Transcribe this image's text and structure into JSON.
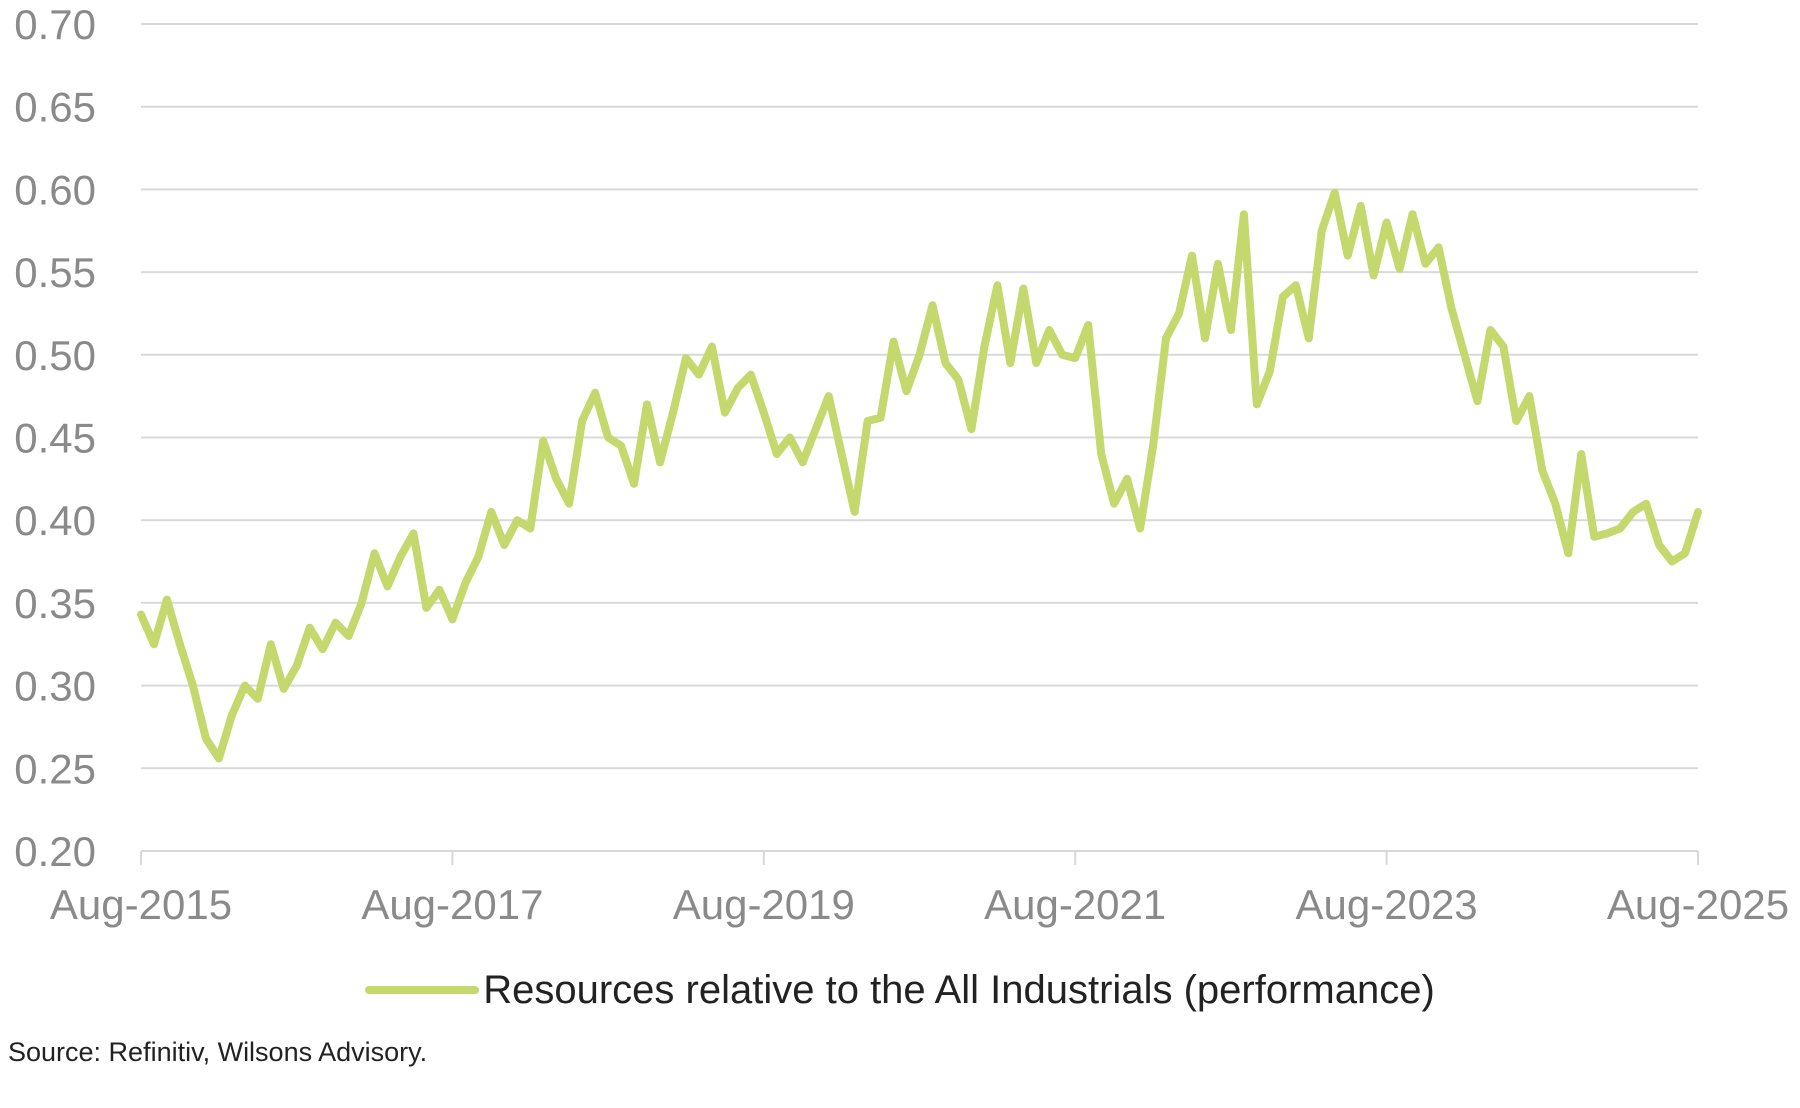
{
  "chart_data": {
    "type": "line",
    "title": "",
    "xlabel": "",
    "ylabel": "",
    "ylim": [
      0.2,
      0.7
    ],
    "yticks": [
      "0.20",
      "0.25",
      "0.30",
      "0.35",
      "0.40",
      "0.45",
      "0.50",
      "0.55",
      "0.60",
      "0.65",
      "0.70"
    ],
    "xlim": [
      "2015-08",
      "2025-08"
    ],
    "xticks": [
      {
        "date": "2015-08",
        "label": "Aug-2015"
      },
      {
        "date": "2017-08",
        "label": "Aug-2017"
      },
      {
        "date": "2019-08",
        "label": "Aug-2019"
      },
      {
        "date": "2021-08",
        "label": "Aug-2021"
      },
      {
        "date": "2023-08",
        "label": "Aug-2023"
      },
      {
        "date": "2025-08",
        "label": "Aug-2025"
      }
    ],
    "grid": "horizontal",
    "legend_position": "bottom",
    "series": [
      {
        "name": "Resources relative to the All Industrials (performance)",
        "color": "#c5d86d",
        "points": [
          [
            "2015-08",
            0.343
          ],
          [
            "2015-09",
            0.325
          ],
          [
            "2015-10",
            0.352
          ],
          [
            "2015-11",
            0.325
          ],
          [
            "2015-12",
            0.3
          ],
          [
            "2016-01",
            0.268
          ],
          [
            "2016-02",
            0.256
          ],
          [
            "2016-03",
            0.282
          ],
          [
            "2016-04",
            0.3
          ],
          [
            "2016-05",
            0.292
          ],
          [
            "2016-06",
            0.325
          ],
          [
            "2016-07",
            0.298
          ],
          [
            "2016-08",
            0.312
          ],
          [
            "2016-09",
            0.335
          ],
          [
            "2016-10",
            0.322
          ],
          [
            "2016-11",
            0.338
          ],
          [
            "2016-12",
            0.33
          ],
          [
            "2017-01",
            0.35
          ],
          [
            "2017-02",
            0.38
          ],
          [
            "2017-03",
            0.36
          ],
          [
            "2017-04",
            0.378
          ],
          [
            "2017-05",
            0.392
          ],
          [
            "2017-06",
            0.347
          ],
          [
            "2017-07",
            0.358
          ],
          [
            "2017-08",
            0.34
          ],
          [
            "2017-09",
            0.362
          ],
          [
            "2017-10",
            0.378
          ],
          [
            "2017-11",
            0.405
          ],
          [
            "2017-12",
            0.385
          ],
          [
            "2018-01",
            0.4
          ],
          [
            "2018-02",
            0.395
          ],
          [
            "2018-03",
            0.448
          ],
          [
            "2018-04",
            0.425
          ],
          [
            "2018-05",
            0.41
          ],
          [
            "2018-06",
            0.46
          ],
          [
            "2018-07",
            0.477
          ],
          [
            "2018-08",
            0.45
          ],
          [
            "2018-09",
            0.445
          ],
          [
            "2018-10",
            0.422
          ],
          [
            "2018-11",
            0.47
          ],
          [
            "2018-12",
            0.435
          ],
          [
            "2019-01",
            0.465
          ],
          [
            "2019-02",
            0.498
          ],
          [
            "2019-03",
            0.488
          ],
          [
            "2019-04",
            0.505
          ],
          [
            "2019-05",
            0.465
          ],
          [
            "2019-06",
            0.48
          ],
          [
            "2019-07",
            0.488
          ],
          [
            "2019-08",
            0.465
          ],
          [
            "2019-09",
            0.44
          ],
          [
            "2019-10",
            0.45
          ],
          [
            "2019-11",
            0.435
          ],
          [
            "2019-12",
            0.455
          ],
          [
            "2020-01",
            0.475
          ],
          [
            "2020-02",
            0.44
          ],
          [
            "2020-03",
            0.405
          ],
          [
            "2020-04",
            0.46
          ],
          [
            "2020-05",
            0.462
          ],
          [
            "2020-06",
            0.508
          ],
          [
            "2020-07",
            0.478
          ],
          [
            "2020-08",
            0.5
          ],
          [
            "2020-09",
            0.53
          ],
          [
            "2020-10",
            0.495
          ],
          [
            "2020-11",
            0.485
          ],
          [
            "2020-12",
            0.455
          ],
          [
            "2021-01",
            0.505
          ],
          [
            "2021-02",
            0.542
          ],
          [
            "2021-03",
            0.495
          ],
          [
            "2021-04",
            0.54
          ],
          [
            "2021-05",
            0.495
          ],
          [
            "2021-06",
            0.515
          ],
          [
            "2021-07",
            0.5
          ],
          [
            "2021-08",
            0.498
          ],
          [
            "2021-09",
            0.518
          ],
          [
            "2021-10",
            0.44
          ],
          [
            "2021-11",
            0.41
          ],
          [
            "2021-12",
            0.425
          ],
          [
            "2022-01",
            0.395
          ],
          [
            "2022-02",
            0.445
          ],
          [
            "2022-03",
            0.51
          ],
          [
            "2022-04",
            0.525
          ],
          [
            "2022-05",
            0.56
          ],
          [
            "2022-06",
            0.51
          ],
          [
            "2022-07",
            0.555
          ],
          [
            "2022-08",
            0.515
          ],
          [
            "2022-09",
            0.585
          ],
          [
            "2022-10",
            0.47
          ],
          [
            "2022-11",
            0.49
          ],
          [
            "2022-12",
            0.535
          ],
          [
            "2023-01",
            0.542
          ],
          [
            "2023-02",
            0.51
          ],
          [
            "2023-03",
            0.575
          ],
          [
            "2023-04",
            0.598
          ],
          [
            "2023-05",
            0.56
          ],
          [
            "2023-06",
            0.59
          ],
          [
            "2023-07",
            0.548
          ],
          [
            "2023-08",
            0.58
          ],
          [
            "2023-09",
            0.552
          ],
          [
            "2023-10",
            0.585
          ],
          [
            "2023-11",
            0.555
          ],
          [
            "2023-12",
            0.565
          ],
          [
            "2024-01",
            0.528
          ],
          [
            "2024-02",
            0.5
          ],
          [
            "2024-03",
            0.472
          ],
          [
            "2024-04",
            0.515
          ],
          [
            "2024-05",
            0.505
          ],
          [
            "2024-06",
            0.46
          ],
          [
            "2024-07",
            0.475
          ],
          [
            "2024-08",
            0.43
          ],
          [
            "2024-09",
            0.41
          ],
          [
            "2024-10",
            0.38
          ],
          [
            "2024-11",
            0.44
          ],
          [
            "2024-12",
            0.39
          ],
          [
            "2025-01",
            0.392
          ],
          [
            "2025-02",
            0.395
          ],
          [
            "2025-03",
            0.405
          ],
          [
            "2025-04",
            0.41
          ],
          [
            "2025-05",
            0.385
          ],
          [
            "2025-06",
            0.375
          ],
          [
            "2025-07",
            0.38
          ],
          [
            "2025-08",
            0.405
          ]
        ]
      }
    ]
  },
  "source_text": "Source: Refinitiv, Wilsons Advisory."
}
